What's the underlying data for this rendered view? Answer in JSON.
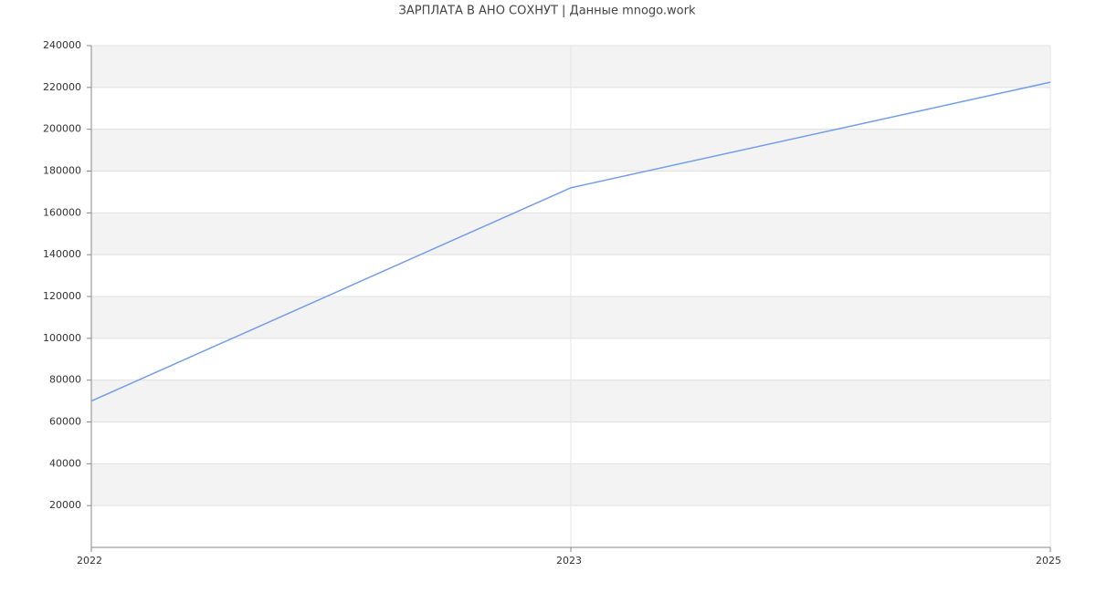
{
  "chart_data": {
    "type": "line",
    "title": "ЗАРПЛАТА В АНО СОХНУТ | Данные mnogo.work",
    "categories": [
      "2022",
      "2023",
      "2025"
    ],
    "series": [
      {
        "name": "Зарплата",
        "color": "#739de9",
        "values": [
          70000,
          172000,
          222500
        ]
      }
    ],
    "ylim": [
      0,
      240000
    ],
    "yticks": [
      20000,
      40000,
      60000,
      80000,
      100000,
      120000,
      140000,
      160000,
      180000,
      200000,
      220000,
      240000
    ],
    "grid": true
  }
}
